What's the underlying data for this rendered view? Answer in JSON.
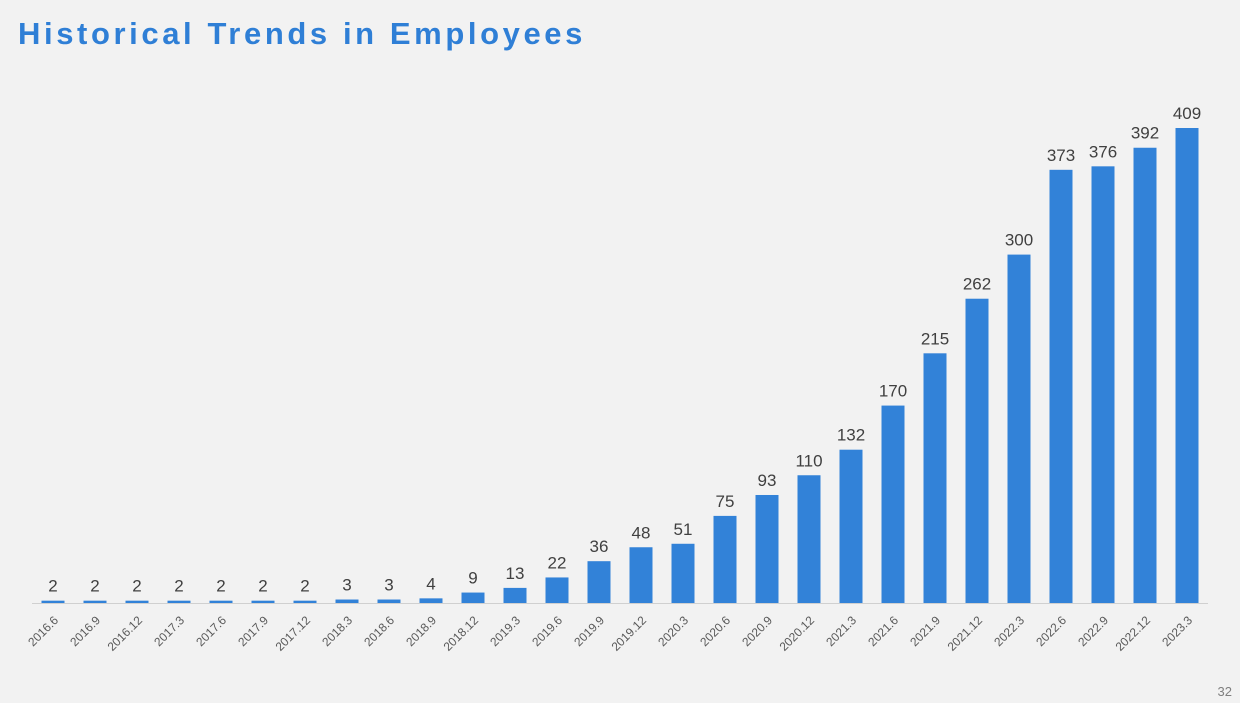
{
  "slide": {
    "title": "Historical Trends in Employees",
    "page_number": "32"
  },
  "colors": {
    "bar": "#3282d8",
    "title": "#2f7fd6",
    "axis": "#d0d0d0",
    "background": "#f2f2f2"
  },
  "chart_data": {
    "type": "bar",
    "title": "",
    "xlabel": "",
    "ylabel": "",
    "ylim": [
      0,
      409
    ],
    "grid": false,
    "legend": "none",
    "categories": [
      "2016.6",
      "2016.9",
      "2016.12",
      "2017.3",
      "2017.6",
      "2017.9",
      "2017.12",
      "2018.3",
      "2018.6",
      "2018.9",
      "2018.12",
      "2019.3",
      "2019.6",
      "2019.9",
      "2019.12",
      "2020.3",
      "2020.6",
      "2020.9",
      "2020.12",
      "2021.3",
      "2021.6",
      "2021.9",
      "2021.12",
      "2022.3",
      "2022.6",
      "2022.9",
      "2022.12",
      "2023.3"
    ],
    "values": [
      2,
      2,
      2,
      2,
      2,
      2,
      2,
      3,
      3,
      4,
      9,
      13,
      22,
      36,
      48,
      51,
      75,
      93,
      110,
      132,
      170,
      215,
      262,
      300,
      373,
      376,
      392,
      409
    ]
  }
}
